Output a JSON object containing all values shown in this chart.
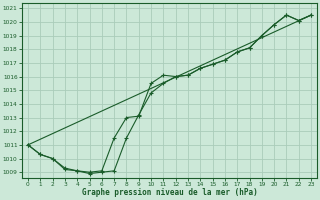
{
  "title": "Graphe pression niveau de la mer (hPa)",
  "background_color": "#cce8d8",
  "grid_color": "#aaccba",
  "line_color": "#1a5c2a",
  "xlim": [
    -0.5,
    23.5
  ],
  "ylim": [
    1008.6,
    1021.4
  ],
  "yticks": [
    1009,
    1010,
    1011,
    1012,
    1013,
    1014,
    1015,
    1016,
    1017,
    1018,
    1019,
    1020,
    1021
  ],
  "xticks": [
    0,
    1,
    2,
    3,
    4,
    5,
    6,
    7,
    8,
    9,
    10,
    11,
    12,
    13,
    14,
    15,
    16,
    17,
    18,
    19,
    20,
    21,
    22,
    23
  ],
  "line1_x": [
    0,
    1,
    2,
    3,
    4,
    5,
    6,
    7,
    8,
    9,
    10,
    11,
    12,
    13,
    14,
    15,
    16,
    17,
    18,
    19,
    20,
    21,
    22,
    23
  ],
  "line1_y": [
    1011.0,
    1010.3,
    1010.0,
    1009.3,
    1009.1,
    1009.0,
    1009.1,
    1011.5,
    1013.0,
    1013.1,
    1015.5,
    1016.1,
    1016.0,
    1016.1,
    1016.6,
    1016.9,
    1017.2,
    1017.8,
    1018.1,
    1019.0,
    1019.8,
    1020.5,
    1020.1,
    1020.5
  ],
  "line2_x": [
    0,
    1,
    2,
    3,
    4,
    5,
    6,
    7,
    8,
    9,
    10,
    11,
    12,
    13,
    14,
    15,
    16,
    17,
    18,
    19,
    20,
    21,
    22,
    23
  ],
  "line2_y": [
    1011.0,
    1010.3,
    1010.0,
    1009.2,
    1009.1,
    1008.9,
    1009.0,
    1009.1,
    1011.5,
    1013.2,
    1014.8,
    1015.5,
    1016.0,
    1016.1,
    1016.6,
    1016.9,
    1017.2,
    1017.8,
    1018.1,
    1019.0,
    1019.8,
    1020.5,
    1020.1,
    1020.5
  ],
  "line3_x": [
    0,
    23
  ],
  "line3_y": [
    1011.0,
    1020.5
  ]
}
